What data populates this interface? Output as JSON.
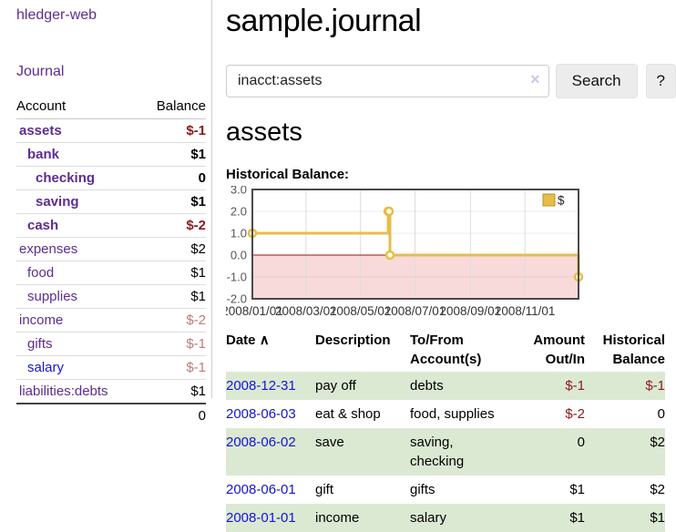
{
  "colors": {
    "link_purple": "#5c2d91",
    "link_blue": "#1414d6",
    "negative_strong": "#8b1a1a",
    "negative_muted": "#bd7a7a",
    "row_stripe_green": "#dbe9d3",
    "chart_gold": "#e6bd4a"
  },
  "sidebar": {
    "brand": "hledger-web",
    "journal_label": "Journal",
    "columns": {
      "account": "Account",
      "balance": "Balance"
    },
    "accounts": [
      {
        "name": "assets",
        "balance": "$-1",
        "indent": 0,
        "emph": true,
        "balance_style": "negative-strong",
        "link_style": "visited"
      },
      {
        "name": "bank",
        "balance": "$1",
        "indent": 1,
        "emph": true,
        "balance_style": "plain",
        "link_style": "visited"
      },
      {
        "name": "checking",
        "balance": "0",
        "indent": 2,
        "emph": true,
        "balance_style": "plain",
        "link_style": "visited"
      },
      {
        "name": "saving",
        "balance": "$1",
        "indent": 2,
        "emph": true,
        "balance_style": "plain",
        "link_style": "visited"
      },
      {
        "name": "cash",
        "balance": "$-2",
        "indent": 1,
        "emph": true,
        "balance_style": "negative-strong",
        "link_style": "visited"
      },
      {
        "name": "expenses",
        "balance": "$2",
        "indent": 0,
        "emph": false,
        "balance_style": "plain",
        "link_style": "visited"
      },
      {
        "name": "food",
        "balance": "$1",
        "indent": 1,
        "emph": false,
        "balance_style": "plain",
        "link_style": "visited"
      },
      {
        "name": "supplies",
        "balance": "$1",
        "indent": 1,
        "emph": false,
        "balance_style": "plain",
        "link_style": "visited"
      },
      {
        "name": "income",
        "balance": "$-2",
        "indent": 0,
        "emph": false,
        "balance_style": "negative-muted",
        "link_style": "visited"
      },
      {
        "name": "gifts",
        "balance": "$-1",
        "indent": 1,
        "emph": false,
        "balance_style": "negative-muted",
        "link_style": "visited"
      },
      {
        "name": "salary",
        "balance": "$-1",
        "indent": 1,
        "emph": false,
        "balance_style": "negative-muted",
        "link_style": "unvisited"
      },
      {
        "name": "liabilities:debts",
        "balance": "$1",
        "indent": 0,
        "emph": false,
        "balance_style": "plain",
        "link_style": "visited"
      }
    ],
    "total": "0"
  },
  "main": {
    "title": "sample.journal",
    "search": {
      "value": "inacct:assets",
      "clear_icon": "×",
      "button_label": "Search",
      "help_label": "?"
    },
    "account_heading": "assets",
    "chart_title": "Historical Balance:"
  },
  "chart_data": {
    "type": "line",
    "step": true,
    "title": "Historical Balance",
    "series": [
      {
        "name": "$",
        "x": [
          "2008-01-01",
          "2008-06-01",
          "2008-06-02",
          "2008-06-03",
          "2008-12-31"
        ],
        "y": [
          1,
          2,
          2,
          0,
          -1
        ]
      }
    ],
    "x_domain": [
      "2008-01-01",
      "2008-12-31"
    ],
    "ylim": [
      -2,
      3
    ],
    "yticks": [
      3.0,
      2.0,
      1.0,
      0.0,
      -1.0,
      -2.0
    ],
    "xticks": [
      {
        "date": "2008-01-01",
        "label": "2008/01/01"
      },
      {
        "date": "2008-03-01",
        "label": "2008/03/01"
      },
      {
        "date": "2008-05-01",
        "label": "2008/05/01"
      },
      {
        "date": "2008-07-01",
        "label": "2008/07/01"
      },
      {
        "date": "2008-09-01",
        "label": "2008/09/01"
      },
      {
        "date": "2008-11-01",
        "label": "2008/11/01"
      }
    ],
    "legend": {
      "label": "$",
      "position": "top-right"
    },
    "grid": true,
    "colors": {
      "line": "#e6bd4a",
      "marker_fill": "#fffdf0",
      "negative_area": "#f9dada",
      "zero_line": "#a21010",
      "grid": "#dddddd",
      "border": "#4a4a4a",
      "tick_text": "#555555",
      "x_tick_text": "#333333"
    }
  },
  "register": {
    "headers": {
      "date": "Date",
      "sort_icon": "∧",
      "description": "Description",
      "accounts": "To/From Account(s)",
      "amount": "Amount Out/In",
      "balance": "Historical Balance"
    },
    "rows": [
      {
        "date": "2008-12-31",
        "description": "pay off",
        "accounts": "debts",
        "amount": "$-1",
        "amount_negative": true,
        "balance": "$-1",
        "balance_negative": true
      },
      {
        "date": "2008-06-03",
        "description": "eat & shop",
        "accounts": "food, supplies",
        "amount": "$-2",
        "amount_negative": true,
        "balance": "0",
        "balance_negative": false
      },
      {
        "date": "2008-06-02",
        "description": "save",
        "accounts": "saving, checking",
        "amount": "0",
        "amount_negative": false,
        "balance": "$2",
        "balance_negative": false
      },
      {
        "date": "2008-06-01",
        "description": "gift",
        "accounts": "gifts",
        "amount": "$1",
        "amount_negative": false,
        "balance": "$2",
        "balance_negative": false
      },
      {
        "date": "2008-01-01",
        "description": "income",
        "accounts": "salary",
        "amount": "$1",
        "amount_negative": false,
        "balance": "$1",
        "balance_negative": false
      }
    ]
  }
}
